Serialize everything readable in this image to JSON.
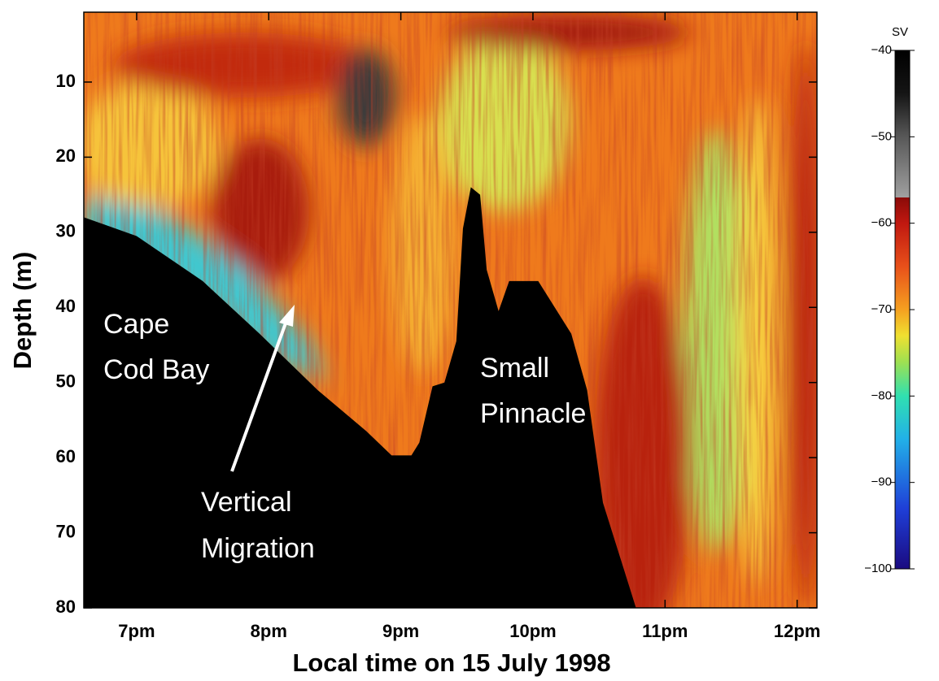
{
  "chart_data": {
    "type": "echogram",
    "xlabel": "Local time on 15 July 1998",
    "ylabel": "Depth (m)",
    "xlim": [
      18.6,
      24.15
    ],
    "xticks": [
      {
        "value": 19,
        "label": "7pm"
      },
      {
        "value": 20,
        "label": "8pm"
      },
      {
        "value": 21,
        "label": "9pm"
      },
      {
        "value": 22,
        "label": "10pm"
      },
      {
        "value": 23,
        "label": "11pm"
      },
      {
        "value": 24,
        "label": "12pm"
      }
    ],
    "ylim": [
      0.7,
      80
    ],
    "yticks": [
      10,
      20,
      30,
      40,
      50,
      60,
      70,
      80
    ],
    "y_inverted": true,
    "seabed": {
      "color": "#000000",
      "x": [
        18.6,
        19.0,
        19.5,
        19.93,
        20.37,
        20.74,
        20.93,
        21.08,
        21.14,
        21.24,
        21.33,
        21.42,
        21.47,
        21.53,
        21.6,
        21.65,
        21.74,
        21.82,
        22.04,
        22.29,
        22.41,
        22.53,
        22.78
      ],
      "values": [
        28,
        30.5,
        36.5,
        43.5,
        51,
        56.5,
        59.7,
        59.7,
        58,
        50.5,
        50,
        44.5,
        29.5,
        24,
        25,
        35,
        40.5,
        36.5,
        36.5,
        43.5,
        51,
        66,
        80
      ]
    },
    "colorbar": {
      "label": "SV",
      "clim": [
        -100,
        -40
      ],
      "ticks": [
        {
          "value": -40,
          "label": "−40"
        },
        {
          "value": -50,
          "label": "−50"
        },
        {
          "value": -60,
          "label": "−60"
        },
        {
          "value": -70,
          "label": "−70"
        },
        {
          "value": -80,
          "label": "−80"
        },
        {
          "value": -90,
          "label": "−90"
        },
        {
          "value": -100,
          "label": "−100"
        }
      ],
      "colorscale": [
        [
          -100,
          "#1a0a80"
        ],
        [
          -93,
          "#1f3fd8"
        ],
        [
          -85,
          "#22b0e8"
        ],
        [
          -80,
          "#30e0b0"
        ],
        [
          -76,
          "#a0e050"
        ],
        [
          -73,
          "#f0e030"
        ],
        [
          -70,
          "#f5a020"
        ],
        [
          -65,
          "#e8501a"
        ],
        [
          -60,
          "#c01810"
        ],
        [
          -57,
          "#8a0a08"
        ],
        [
          -57,
          "#a0a0a0"
        ],
        [
          -50,
          "#585858"
        ],
        [
          -45,
          "#151515"
        ],
        [
          -40,
          "#000000"
        ]
      ]
    },
    "annotations": [
      {
        "lines": [
          "Cape",
          "Cod Bay"
        ]
      },
      {
        "lines": [
          "Vertical",
          "Migration"
        ]
      },
      {
        "lines": [
          "Small",
          "Pinnacle"
        ]
      }
    ]
  }
}
